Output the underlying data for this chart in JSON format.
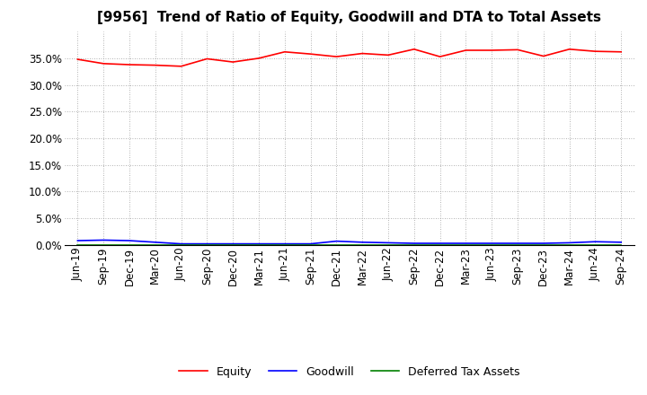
{
  "title": "[9956]  Trend of Ratio of Equity, Goodwill and DTA to Total Assets",
  "labels": [
    "Jun-19",
    "Sep-19",
    "Dec-19",
    "Mar-20",
    "Jun-20",
    "Sep-20",
    "Dec-20",
    "Mar-21",
    "Jun-21",
    "Sep-21",
    "Dec-21",
    "Mar-22",
    "Jun-22",
    "Sep-22",
    "Dec-22",
    "Mar-23",
    "Jun-23",
    "Sep-23",
    "Dec-23",
    "Mar-24",
    "Jun-24",
    "Sep-24"
  ],
  "equity": [
    34.8,
    34.0,
    33.8,
    33.7,
    33.5,
    34.9,
    34.3,
    35.0,
    36.2,
    35.8,
    35.3,
    35.9,
    35.6,
    36.7,
    35.3,
    36.5,
    36.5,
    36.6,
    35.4,
    36.7,
    36.3,
    36.2
  ],
  "goodwill": [
    0.8,
    0.9,
    0.8,
    0.5,
    0.2,
    0.2,
    0.2,
    0.2,
    0.2,
    0.2,
    0.7,
    0.5,
    0.4,
    0.3,
    0.3,
    0.3,
    0.3,
    0.3,
    0.3,
    0.4,
    0.6,
    0.5
  ],
  "dta": [
    0.05,
    0.05,
    0.05,
    0.05,
    0.05,
    0.05,
    0.05,
    0.05,
    0.05,
    0.05,
    0.05,
    0.05,
    0.05,
    0.05,
    0.05,
    0.05,
    0.05,
    0.05,
    0.05,
    0.05,
    0.05,
    0.05
  ],
  "equity_color": "#FF0000",
  "goodwill_color": "#0000FF",
  "dta_color": "#008000",
  "bg_color": "#FFFFFF",
  "grid_color": "#999999",
  "ylim": [
    0,
    40
  ],
  "yticks": [
    0.0,
    5.0,
    10.0,
    15.0,
    20.0,
    25.0,
    30.0,
    35.0
  ],
  "legend_labels": [
    "Equity",
    "Goodwill",
    "Deferred Tax Assets"
  ],
  "title_fontsize": 11,
  "tick_fontsize": 8.5,
  "legend_fontsize": 9
}
